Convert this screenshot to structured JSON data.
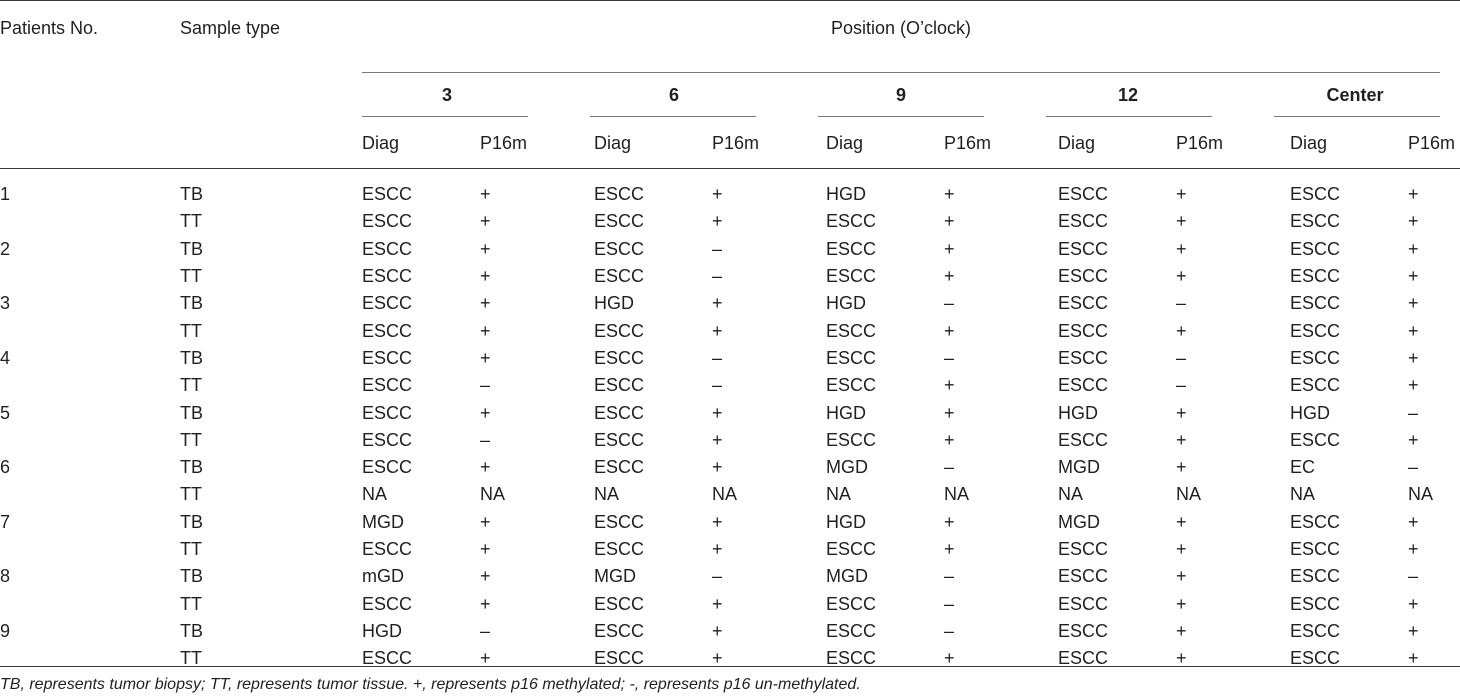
{
  "headers": {
    "patients_no": "Patients No.",
    "sample_type": "Sample type",
    "position": "Position (O’clock)",
    "groups": [
      "3",
      "6",
      "9",
      "12",
      "Center"
    ],
    "sub": [
      "Diag",
      "P16m"
    ]
  },
  "rows": [
    {
      "patient": "1",
      "sample": "TB",
      "cells": [
        "ESCC",
        "+",
        "ESCC",
        "+",
        "HGD",
        "+",
        "ESCC",
        "+",
        "ESCC",
        "+"
      ]
    },
    {
      "patient": "",
      "sample": "TT",
      "cells": [
        "ESCC",
        "+",
        "ESCC",
        "+",
        "ESCC",
        "+",
        "ESCC",
        "+",
        "ESCC",
        "+"
      ]
    },
    {
      "patient": "2",
      "sample": "TB",
      "cells": [
        "ESCC",
        "+",
        "ESCC",
        "–",
        "ESCC",
        "+",
        "ESCC",
        "+",
        "ESCC",
        "+"
      ]
    },
    {
      "patient": "",
      "sample": "TT",
      "cells": [
        "ESCC",
        "+",
        "ESCC",
        "–",
        "ESCC",
        "+",
        "ESCC",
        "+",
        "ESCC",
        "+"
      ]
    },
    {
      "patient": "3",
      "sample": "TB",
      "cells": [
        "ESCC",
        "+",
        "HGD",
        "+",
        "HGD",
        "–",
        "ESCC",
        "–",
        "ESCC",
        "+"
      ]
    },
    {
      "patient": "",
      "sample": "TT",
      "cells": [
        "ESCC",
        "+",
        "ESCC",
        "+",
        "ESCC",
        "+",
        "ESCC",
        "+",
        "ESCC",
        "+"
      ]
    },
    {
      "patient": "4",
      "sample": "TB",
      "cells": [
        "ESCC",
        "+",
        "ESCC",
        "–",
        "ESCC",
        "–",
        "ESCC",
        "–",
        "ESCC",
        "+"
      ]
    },
    {
      "patient": "",
      "sample": "TT",
      "cells": [
        "ESCC",
        "–",
        "ESCC",
        "–",
        "ESCC",
        "+",
        "ESCC",
        "–",
        "ESCC",
        "+"
      ]
    },
    {
      "patient": "5",
      "sample": "TB",
      "cells": [
        "ESCC",
        "+",
        "ESCC",
        "+",
        "HGD",
        "+",
        "HGD",
        "+",
        "HGD",
        "–"
      ]
    },
    {
      "patient": "",
      "sample": "TT",
      "cells": [
        "ESCC",
        "–",
        "ESCC",
        "+",
        "ESCC",
        "+",
        "ESCC",
        "+",
        "ESCC",
        "+"
      ]
    },
    {
      "patient": "6",
      "sample": "TB",
      "cells": [
        "ESCC",
        "+",
        "ESCC",
        "+",
        "MGD",
        "–",
        "MGD",
        "+",
        "EC",
        "–"
      ]
    },
    {
      "patient": "",
      "sample": "TT",
      "cells": [
        "NA",
        "NA",
        "NA",
        "NA",
        "NA",
        "NA",
        "NA",
        "NA",
        "NA",
        "NA"
      ]
    },
    {
      "patient": "7",
      "sample": "TB",
      "cells": [
        "MGD",
        "+",
        "ESCC",
        "+",
        "HGD",
        "+",
        "MGD",
        "+",
        "ESCC",
        "+"
      ]
    },
    {
      "patient": "",
      "sample": "TT",
      "cells": [
        "ESCC",
        "+",
        "ESCC",
        "+",
        "ESCC",
        "+",
        "ESCC",
        "+",
        "ESCC",
        "+"
      ]
    },
    {
      "patient": "8",
      "sample": "TB",
      "cells": [
        "mGD",
        "+",
        "MGD",
        "–",
        "MGD",
        "–",
        "ESCC",
        "+",
        "ESCC",
        "–"
      ]
    },
    {
      "patient": "",
      "sample": "TT",
      "cells": [
        "ESCC",
        "+",
        "ESCC",
        "+",
        "ESCC",
        "–",
        "ESCC",
        "+",
        "ESCC",
        "+"
      ]
    },
    {
      "patient": "9",
      "sample": "TB",
      "cells": [
        "HGD",
        "–",
        "ESCC",
        "+",
        "ESCC",
        "–",
        "ESCC",
        "+",
        "ESCC",
        "+"
      ]
    },
    {
      "patient": "",
      "sample": "TT",
      "cells": [
        "ESCC",
        "+",
        "ESCC",
        "+",
        "ESCC",
        "+",
        "ESCC",
        "+",
        "ESCC",
        "+"
      ]
    }
  ],
  "footnote": "TB, represents tumor biopsy; TT, represents tumor tissue. +, represents p16 methylated; -, represents p16 un-methylated."
}
